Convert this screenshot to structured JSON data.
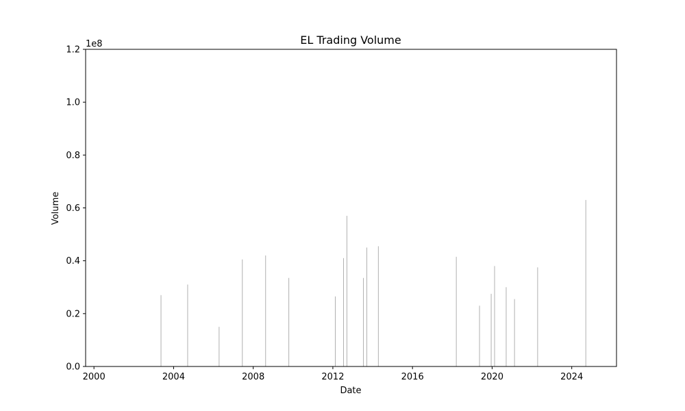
{
  "chart_data": {
    "type": "bar",
    "title": "EL Trading Volume",
    "xlabel": "Date",
    "ylabel": "Volume",
    "y_multiplier_label": "1e8",
    "x_ticks": [
      "2000",
      "2004",
      "2008",
      "2012",
      "2016",
      "2020",
      "2024"
    ],
    "y_ticks": [
      "0.0",
      "0.2",
      "0.4",
      "0.6",
      "0.8",
      "1.0",
      "1.2"
    ],
    "xlim": [
      "1999-08-01",
      "2026-04-01"
    ],
    "ylim": [
      0,
      120000000
    ],
    "grid": false,
    "bar_color": "#b0b0b0",
    "series": [
      {
        "x": [
          "2003-05",
          "2004-09",
          "2006-04",
          "2007-06",
          "2008-08",
          "2009-10",
          "2012-02",
          "2012-07",
          "2012-09",
          "2013-07",
          "2013-09",
          "2014-04",
          "2018-03",
          "2019-05",
          "2019-12",
          "2020-02",
          "2020-09",
          "2021-02",
          "2022-04",
          "2024-09"
        ],
        "values": [
          27000000,
          31000000,
          15000000,
          40500000,
          42000000,
          33500000,
          26500000,
          41000000,
          57000000,
          33500000,
          45000000,
          45500000,
          41500000,
          23000000,
          27500000,
          38000000,
          30000000,
          25500000,
          37500000,
          63000000
        ]
      }
    ]
  }
}
